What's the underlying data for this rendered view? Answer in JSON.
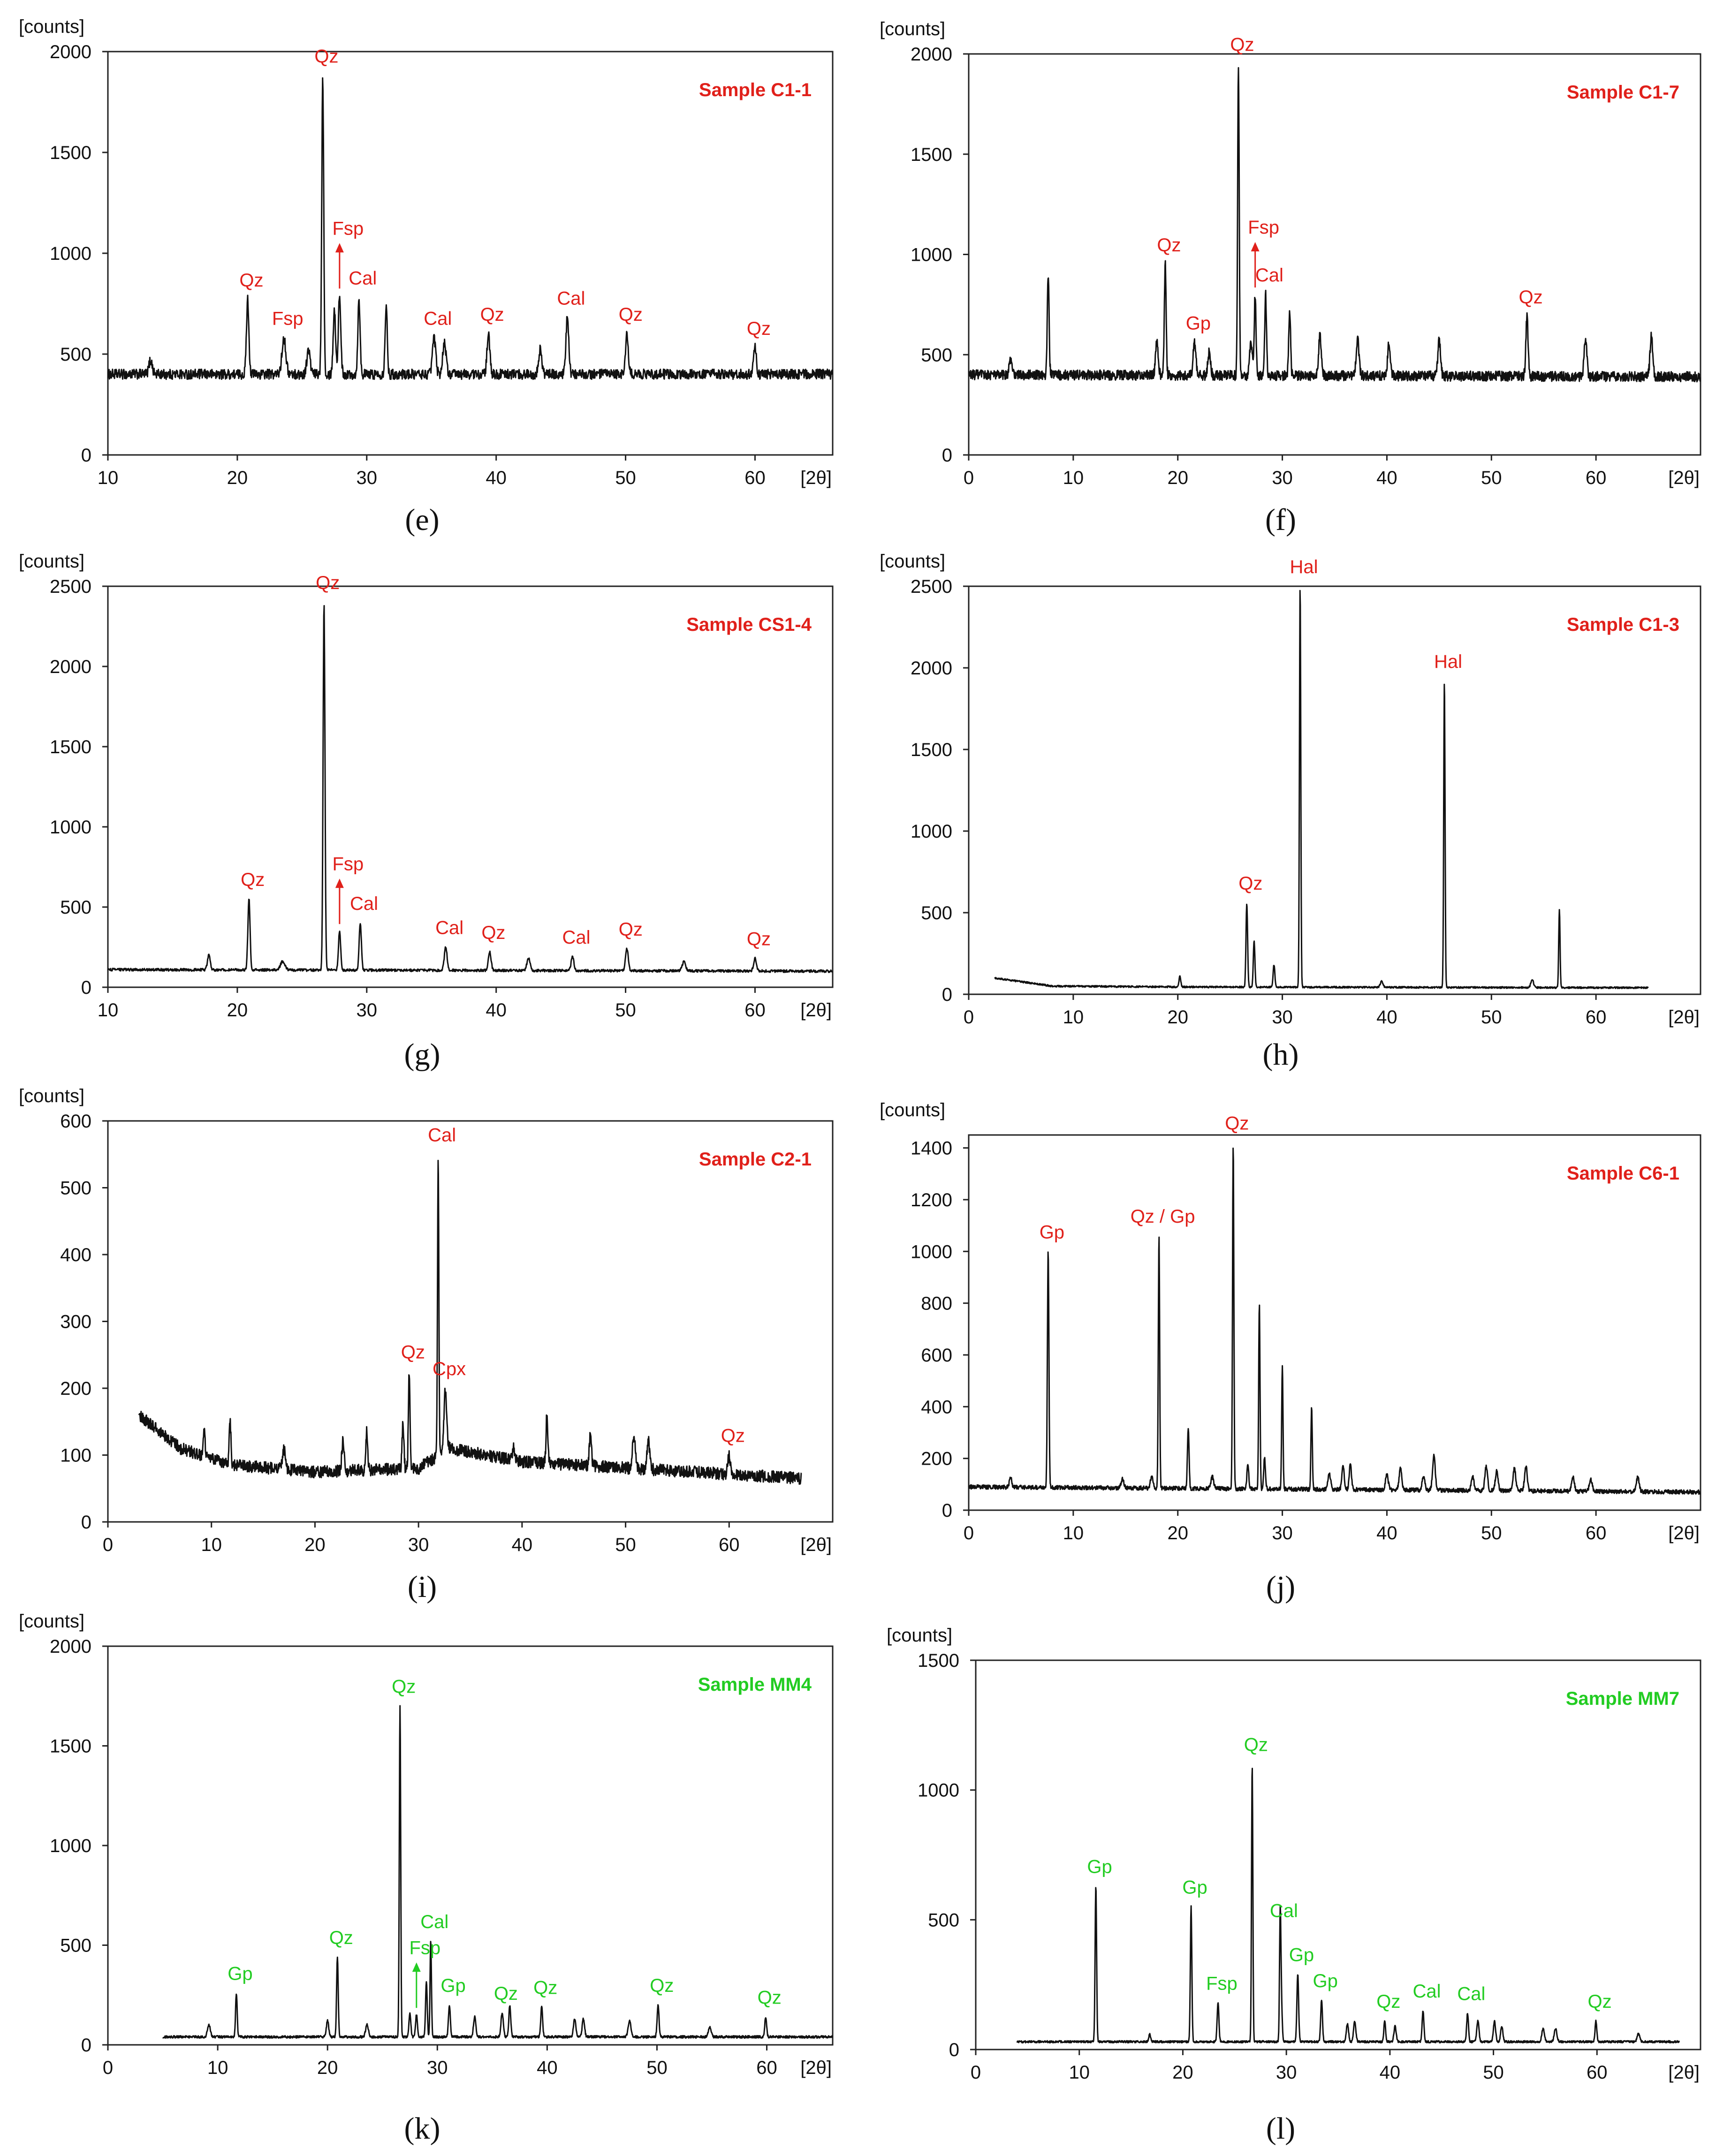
{
  "chart_data": [
    {
      "panel": "e",
      "type": "line",
      "sample_label": "Sample C1-1",
      "label_color": "#e0201a",
      "ylabel": "[counts]",
      "xlabel": "[2θ]",
      "xlim": [
        10,
        66
      ],
      "ylim": [
        0,
        2000
      ],
      "xticks": [
        10,
        20,
        30,
        40,
        50,
        60
      ],
      "yticks": [
        0,
        500,
        1000,
        1500,
        2000
      ],
      "baseline": [
        [
          10,
          400
        ],
        [
          66,
          400
        ]
      ],
      "noise": 25,
      "peaks": [
        {
          "x": 13.3,
          "y": 470,
          "w": 0.3
        },
        {
          "x": 20.8,
          "y": 770,
          "w": 0.22,
          "label": "Qz"
        },
        {
          "x": 23.6,
          "y": 580,
          "w": 0.35,
          "label": "Fsp"
        },
        {
          "x": 25.5,
          "y": 520,
          "w": 0.3
        },
        {
          "x": 26.6,
          "y": 1880,
          "w": 0.18,
          "label": "Qz"
        },
        {
          "x": 27.5,
          "y": 720,
          "w": 0.22
        },
        {
          "x": 27.9,
          "y": 790,
          "w": 0.22,
          "label": "Fsp",
          "arrow": true
        },
        {
          "x": 29.4,
          "y": 780,
          "w": 0.2,
          "label": "Cal"
        },
        {
          "x": 31.5,
          "y": 740,
          "w": 0.2
        },
        {
          "x": 35.2,
          "y": 580,
          "w": 0.3,
          "label": "Cal"
        },
        {
          "x": 36.0,
          "y": 560,
          "w": 0.3
        },
        {
          "x": 39.4,
          "y": 600,
          "w": 0.25,
          "label": "Qz"
        },
        {
          "x": 43.4,
          "y": 520,
          "w": 0.3
        },
        {
          "x": 45.5,
          "y": 680,
          "w": 0.25,
          "label": "Cal"
        },
        {
          "x": 50.1,
          "y": 600,
          "w": 0.25,
          "label": "Qz"
        },
        {
          "x": 60.0,
          "y": 530,
          "w": 0.25,
          "label": "Qz"
        }
      ]
    },
    {
      "panel": "f",
      "type": "line",
      "sample_label": "Sample C1-7",
      "label_color": "#e0201a",
      "ylabel": "[counts]",
      "xlabel": "[2θ]",
      "xlim": [
        0,
        70
      ],
      "ylim": [
        0,
        2000
      ],
      "xticks": [
        0,
        10,
        20,
        30,
        40,
        50,
        60
      ],
      "yticks": [
        0,
        500,
        1000,
        1500,
        2000
      ],
      "baseline": [
        [
          0,
          400
        ],
        [
          70,
          390
        ]
      ],
      "noise": 25,
      "peaks": [
        {
          "x": 4.0,
          "y": 470,
          "w": 0.3
        },
        {
          "x": 7.6,
          "y": 900,
          "w": 0.2
        },
        {
          "x": 18.0,
          "y": 560,
          "w": 0.3
        },
        {
          "x": 18.8,
          "y": 950,
          "w": 0.2,
          "label": "Qz"
        },
        {
          "x": 21.6,
          "y": 560,
          "w": 0.3,
          "label": "Gp"
        },
        {
          "x": 23.0,
          "y": 510,
          "w": 0.3
        },
        {
          "x": 25.8,
          "y": 1950,
          "w": 0.18,
          "label": "Qz"
        },
        {
          "x": 27.0,
          "y": 560,
          "w": 0.3
        },
        {
          "x": 27.4,
          "y": 800,
          "w": 0.2,
          "label": "Fsp",
          "arrow": true
        },
        {
          "x": 28.4,
          "y": 800,
          "w": 0.2,
          "label": "Cal"
        },
        {
          "x": 30.7,
          "y": 720,
          "w": 0.2
        },
        {
          "x": 33.6,
          "y": 600,
          "w": 0.3
        },
        {
          "x": 37.2,
          "y": 580,
          "w": 0.3
        },
        {
          "x": 40.2,
          "y": 560,
          "w": 0.3
        },
        {
          "x": 45.0,
          "y": 570,
          "w": 0.3
        },
        {
          "x": 53.4,
          "y": 690,
          "w": 0.25,
          "label": "Qz"
        },
        {
          "x": 59.0,
          "y": 580,
          "w": 0.3
        },
        {
          "x": 65.3,
          "y": 590,
          "w": 0.3
        }
      ]
    },
    {
      "panel": "g",
      "type": "line",
      "sample_label": "Sample CS1-4",
      "label_color": "#e0201a",
      "ylabel": "[counts]",
      "xlabel": "[2θ]",
      "xlim": [
        10,
        66
      ],
      "ylim": [
        0,
        2500
      ],
      "xticks": [
        10,
        20,
        30,
        40,
        50,
        60
      ],
      "yticks": [
        0,
        500,
        1000,
        1500,
        2000,
        2500
      ],
      "baseline": [
        [
          10,
          110
        ],
        [
          66,
          100
        ]
      ],
      "noise": 8,
      "peaks": [
        {
          "x": 17.8,
          "y": 200,
          "w": 0.25
        },
        {
          "x": 20.9,
          "y": 550,
          "w": 0.2,
          "label": "Qz"
        },
        {
          "x": 23.5,
          "y": 160,
          "w": 0.4
        },
        {
          "x": 26.7,
          "y": 2400,
          "w": 0.17,
          "label": "Qz"
        },
        {
          "x": 27.9,
          "y": 350,
          "w": 0.2,
          "label": "Fsp",
          "arrow": true
        },
        {
          "x": 29.5,
          "y": 400,
          "w": 0.2,
          "label": "Cal"
        },
        {
          "x": 36.1,
          "y": 250,
          "w": 0.25,
          "label": "Cal"
        },
        {
          "x": 39.5,
          "y": 220,
          "w": 0.25,
          "label": "Qz"
        },
        {
          "x": 42.5,
          "y": 180,
          "w": 0.3
        },
        {
          "x": 45.9,
          "y": 190,
          "w": 0.25,
          "label": "Cal"
        },
        {
          "x": 50.1,
          "y": 240,
          "w": 0.25,
          "label": "Qz"
        },
        {
          "x": 54.5,
          "y": 160,
          "w": 0.3
        },
        {
          "x": 60.0,
          "y": 180,
          "w": 0.25,
          "label": "Qz"
        }
      ]
    },
    {
      "panel": "h",
      "type": "line",
      "sample_label": "Sample C1-3",
      "label_color": "#e0201a",
      "ylabel": "[counts]",
      "xlabel": "[2θ]",
      "xlim": [
        0,
        70
      ],
      "ylim": [
        0,
        2500
      ],
      "xticks": [
        0,
        10,
        20,
        30,
        40,
        50,
        60
      ],
      "yticks": [
        0,
        500,
        1000,
        1500,
        2000,
        2500
      ],
      "baseline": [
        [
          2.5,
          100
        ],
        [
          8,
          50
        ],
        [
          20,
          45
        ],
        [
          65,
          40
        ]
      ],
      "noise": 5,
      "peaks": [
        {
          "x": 20.2,
          "y": 110,
          "w": 0.2
        },
        {
          "x": 26.6,
          "y": 560,
          "w": 0.18,
          "label": "Qz"
        },
        {
          "x": 27.3,
          "y": 330,
          "w": 0.18
        },
        {
          "x": 29.2,
          "y": 180,
          "w": 0.2
        },
        {
          "x": 31.7,
          "y": 2500,
          "w": 0.15,
          "label": "Hal"
        },
        {
          "x": 39.5,
          "y": 80,
          "w": 0.3
        },
        {
          "x": 45.5,
          "y": 1920,
          "w": 0.15,
          "label": "Hal"
        },
        {
          "x": 53.9,
          "y": 90,
          "w": 0.3
        },
        {
          "x": 56.5,
          "y": 520,
          "w": 0.15
        }
      ]
    },
    {
      "panel": "i",
      "type": "line",
      "sample_label": "Sample C2-1",
      "label_color": "#e0201a",
      "ylabel": "[counts]",
      "xlabel": "[2θ]",
      "xlim": [
        0,
        70
      ],
      "ylim": [
        0,
        600
      ],
      "xticks": [
        0,
        10,
        20,
        30,
        40,
        50,
        60
      ],
      "yticks": [
        0,
        100,
        200,
        300,
        400,
        500,
        600
      ],
      "baseline": [
        [
          3,
          160
        ],
        [
          7,
          110
        ],
        [
          12,
          85
        ],
        [
          20,
          75
        ],
        [
          30,
          80
        ],
        [
          33,
          110
        ],
        [
          40,
          90
        ],
        [
          67,
          65
        ]
      ],
      "noise": 9,
      "peaks": [
        {
          "x": 9.3,
          "y": 140,
          "w": 0.2
        },
        {
          "x": 11.8,
          "y": 150,
          "w": 0.2
        },
        {
          "x": 17.0,
          "y": 110,
          "w": 0.3
        },
        {
          "x": 22.7,
          "y": 120,
          "w": 0.25
        },
        {
          "x": 25.0,
          "y": 140,
          "w": 0.2
        },
        {
          "x": 28.5,
          "y": 150,
          "w": 0.2
        },
        {
          "x": 29.1,
          "y": 225,
          "w": 0.18,
          "label": "Qz"
        },
        {
          "x": 31.9,
          "y": 550,
          "w": 0.15,
          "label": "Cal"
        },
        {
          "x": 32.6,
          "y": 200,
          "w": 0.3,
          "label": "Cpx"
        },
        {
          "x": 39.2,
          "y": 110,
          "w": 0.25
        },
        {
          "x": 42.4,
          "y": 160,
          "w": 0.2
        },
        {
          "x": 46.6,
          "y": 130,
          "w": 0.25
        },
        {
          "x": 50.8,
          "y": 130,
          "w": 0.3
        },
        {
          "x": 52.2,
          "y": 120,
          "w": 0.3
        },
        {
          "x": 60.0,
          "y": 100,
          "w": 0.3,
          "label": "Qz"
        }
      ]
    },
    {
      "panel": "j",
      "type": "line",
      "sample_label": "Sample C6-1",
      "label_color": "#e0201a",
      "ylabel": "[counts]",
      "xlabel": "[2θ]",
      "xlim": [
        0,
        70
      ],
      "ylim": [
        0,
        1450
      ],
      "xticks": [
        0,
        10,
        20,
        30,
        40,
        50,
        60
      ],
      "yticks": [
        0,
        200,
        400,
        600,
        800,
        1000,
        1200,
        1400
      ],
      "baseline": [
        [
          0,
          90
        ],
        [
          70,
          70
        ]
      ],
      "noise": 8,
      "peaks": [
        {
          "x": 4.0,
          "y": 130,
          "w": 0.25
        },
        {
          "x": 7.6,
          "y": 1000,
          "w": 0.17,
          "label": "Gp"
        },
        {
          "x": 14.7,
          "y": 120,
          "w": 0.3
        },
        {
          "x": 17.5,
          "y": 130,
          "w": 0.3
        },
        {
          "x": 18.2,
          "y": 1060,
          "w": 0.15,
          "label": "Qz / Gp"
        },
        {
          "x": 21.0,
          "y": 320,
          "w": 0.18
        },
        {
          "x": 23.3,
          "y": 130,
          "w": 0.3
        },
        {
          "x": 25.3,
          "y": 1420,
          "w": 0.15,
          "label": "Qz"
        },
        {
          "x": 26.7,
          "y": 180,
          "w": 0.2
        },
        {
          "x": 27.8,
          "y": 800,
          "w": 0.15
        },
        {
          "x": 28.3,
          "y": 200,
          "w": 0.2
        },
        {
          "x": 30.0,
          "y": 560,
          "w": 0.15
        },
        {
          "x": 32.8,
          "y": 400,
          "w": 0.15
        },
        {
          "x": 34.5,
          "y": 140,
          "w": 0.3
        },
        {
          "x": 35.8,
          "y": 180,
          "w": 0.25
        },
        {
          "x": 36.5,
          "y": 180,
          "w": 0.25
        },
        {
          "x": 40.0,
          "y": 140,
          "w": 0.3
        },
        {
          "x": 41.3,
          "y": 160,
          "w": 0.3
        },
        {
          "x": 43.5,
          "y": 130,
          "w": 0.3
        },
        {
          "x": 44.5,
          "y": 210,
          "w": 0.3
        },
        {
          "x": 48.2,
          "y": 130,
          "w": 0.3
        },
        {
          "x": 49.5,
          "y": 170,
          "w": 0.3
        },
        {
          "x": 50.5,
          "y": 150,
          "w": 0.3
        },
        {
          "x": 52.2,
          "y": 160,
          "w": 0.3
        },
        {
          "x": 53.3,
          "y": 170,
          "w": 0.3
        },
        {
          "x": 57.8,
          "y": 130,
          "w": 0.3
        },
        {
          "x": 59.5,
          "y": 120,
          "w": 0.3
        },
        {
          "x": 64.0,
          "y": 130,
          "w": 0.3
        }
      ]
    },
    {
      "panel": "k",
      "type": "line",
      "sample_label": "Sample MM4",
      "label_color": "#22cc22",
      "ylabel": "[counts]",
      "xlabel": "[2θ]",
      "xlim": [
        0,
        66
      ],
      "ylim": [
        0,
        2000
      ],
      "xticks": [
        0,
        10,
        20,
        30,
        40,
        50,
        60
      ],
      "yticks": [
        0,
        500,
        1000,
        1500,
        2000
      ],
      "baseline": [
        [
          5,
          40
        ],
        [
          66,
          40
        ]
      ],
      "noise": 6,
      "peaks": [
        {
          "x": 9.2,
          "y": 100,
          "w": 0.3
        },
        {
          "x": 11.7,
          "y": 260,
          "w": 0.17,
          "label": "Gp"
        },
        {
          "x": 20.0,
          "y": 120,
          "w": 0.25
        },
        {
          "x": 20.9,
          "y": 440,
          "w": 0.17,
          "label": "Qz"
        },
        {
          "x": 23.6,
          "y": 100,
          "w": 0.3
        },
        {
          "x": 26.6,
          "y": 1700,
          "w": 0.15,
          "label": "Qz"
        },
        {
          "x": 27.5,
          "y": 160,
          "w": 0.2
        },
        {
          "x": 28.1,
          "y": 150,
          "w": 0.2,
          "label": "Fsp",
          "arrow": true
        },
        {
          "x": 29.0,
          "y": 320,
          "w": 0.18
        },
        {
          "x": 29.4,
          "y": 520,
          "w": 0.15,
          "label": "Cal"
        },
        {
          "x": 31.1,
          "y": 200,
          "w": 0.2,
          "label": "Gp"
        },
        {
          "x": 33.4,
          "y": 140,
          "w": 0.25
        },
        {
          "x": 35.9,
          "y": 160,
          "w": 0.25,
          "label": "Qz"
        },
        {
          "x": 36.6,
          "y": 200,
          "w": 0.2
        },
        {
          "x": 39.5,
          "y": 190,
          "w": 0.2,
          "label": "Qz"
        },
        {
          "x": 42.5,
          "y": 130,
          "w": 0.25
        },
        {
          "x": 43.3,
          "y": 130,
          "w": 0.25
        },
        {
          "x": 47.5,
          "y": 120,
          "w": 0.3
        },
        {
          "x": 50.1,
          "y": 200,
          "w": 0.2,
          "label": "Qz"
        },
        {
          "x": 54.8,
          "y": 90,
          "w": 0.3
        },
        {
          "x": 59.9,
          "y": 140,
          "w": 0.2,
          "label": "Qz"
        }
      ]
    },
    {
      "panel": "l",
      "type": "line",
      "sample_label": "Sample MM7",
      "label_color": "#22cc22",
      "ylabel": "[counts]",
      "xlabel": "[2θ]",
      "xlim": [
        0,
        70
      ],
      "ylim": [
        0,
        1500
      ],
      "xticks": [
        0,
        10,
        20,
        30,
        40,
        50,
        60
      ],
      "yticks": [
        0,
        500,
        1000,
        1500
      ],
      "baseline": [
        [
          4,
          30
        ],
        [
          68,
          30
        ]
      ],
      "noise": 4,
      "peaks": [
        {
          "x": 11.6,
          "y": 630,
          "w": 0.17,
          "label": "Gp"
        },
        {
          "x": 16.8,
          "y": 60,
          "w": 0.2
        },
        {
          "x": 20.8,
          "y": 550,
          "w": 0.17,
          "label": "Gp"
        },
        {
          "x": 23.4,
          "y": 180,
          "w": 0.2,
          "label": "Fsp"
        },
        {
          "x": 26.7,
          "y": 1100,
          "w": 0.15,
          "label": "Qz"
        },
        {
          "x": 29.5,
          "y": 210,
          "w": 0.2
        },
        {
          "x": 29.4,
          "y": 460,
          "w": 0.15,
          "label": "Cal"
        },
        {
          "x": 31.1,
          "y": 290,
          "w": 0.2,
          "label": "Gp"
        },
        {
          "x": 33.4,
          "y": 190,
          "w": 0.2,
          "label": "Gp"
        },
        {
          "x": 35.9,
          "y": 100,
          "w": 0.25
        },
        {
          "x": 36.6,
          "y": 110,
          "w": 0.25
        },
        {
          "x": 39.5,
          "y": 110,
          "w": 0.2,
          "label": "Qz"
        },
        {
          "x": 40.5,
          "y": 90,
          "w": 0.25
        },
        {
          "x": 43.2,
          "y": 150,
          "w": 0.2,
          "label": "Cal"
        },
        {
          "x": 47.5,
          "y": 140,
          "w": 0.2,
          "label": "Cal"
        },
        {
          "x": 48.5,
          "y": 110,
          "w": 0.25
        },
        {
          "x": 50.1,
          "y": 110,
          "w": 0.25
        },
        {
          "x": 50.8,
          "y": 90,
          "w": 0.25
        },
        {
          "x": 54.8,
          "y": 80,
          "w": 0.3
        },
        {
          "x": 56.0,
          "y": 80,
          "w": 0.3
        },
        {
          "x": 59.9,
          "y": 110,
          "w": 0.2,
          "label": "Qz"
        },
        {
          "x": 64.0,
          "y": 60,
          "w": 0.3
        }
      ]
    }
  ],
  "captions": [
    "(e)",
    "(f)",
    "(g)",
    "(h)",
    "(i)",
    "(j)",
    "(k)",
    "(l)"
  ]
}
